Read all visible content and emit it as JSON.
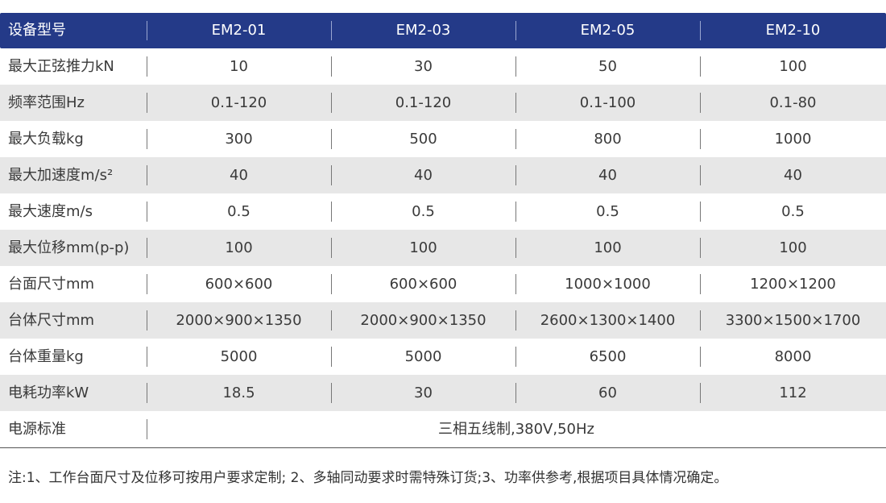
{
  "table": {
    "headers": [
      "设备型号",
      "EM2-01",
      "EM2-03",
      "EM2-05",
      "EM2-10"
    ],
    "rows": [
      {
        "label": "最大正弦推力kN",
        "values": [
          "10",
          "30",
          "50",
          "100"
        ]
      },
      {
        "label": "频率范围Hz",
        "values": [
          "0.1-120",
          "0.1-120",
          "0.1-100",
          "0.1-80"
        ]
      },
      {
        "label": "最大负载kg",
        "values": [
          "300",
          "500",
          "800",
          "1000"
        ]
      },
      {
        "label": "最大加速度m/s²",
        "values": [
          "40",
          "40",
          "40",
          "40"
        ]
      },
      {
        "label": "最大速度m/s",
        "values": [
          "0.5",
          "0.5",
          "0.5",
          "0.5"
        ]
      },
      {
        "label": "最大位移mm(p-p)",
        "values": [
          "100",
          "100",
          "100",
          "100"
        ]
      },
      {
        "label": "台面尺寸mm",
        "values": [
          "600×600",
          "600×600",
          "1000×1000",
          "1200×1200"
        ]
      },
      {
        "label": "台体尺寸mm",
        "values": [
          "2000×900×1350",
          "2000×900×1350",
          "2600×1300×1400",
          "3300×1500×1700"
        ]
      },
      {
        "label": "台体重量kg",
        "values": [
          "5000",
          "5000",
          "6500",
          "8000"
        ]
      },
      {
        "label": "电耗功率kW",
        "values": [
          "18.5",
          "30",
          "60",
          "112"
        ]
      }
    ],
    "power_row": {
      "label": "电源标准",
      "value": "三相五线制,380V,50Hz"
    }
  },
  "note": "注:1、工作台面尺寸及位移可按用户要求定制; 2、多轴同动要求时需特殊订货;3、功率供参考,根据项目具体情况确定。",
  "colors": {
    "header_bg": "#243a88",
    "row_shade": "#e7e7e7"
  }
}
